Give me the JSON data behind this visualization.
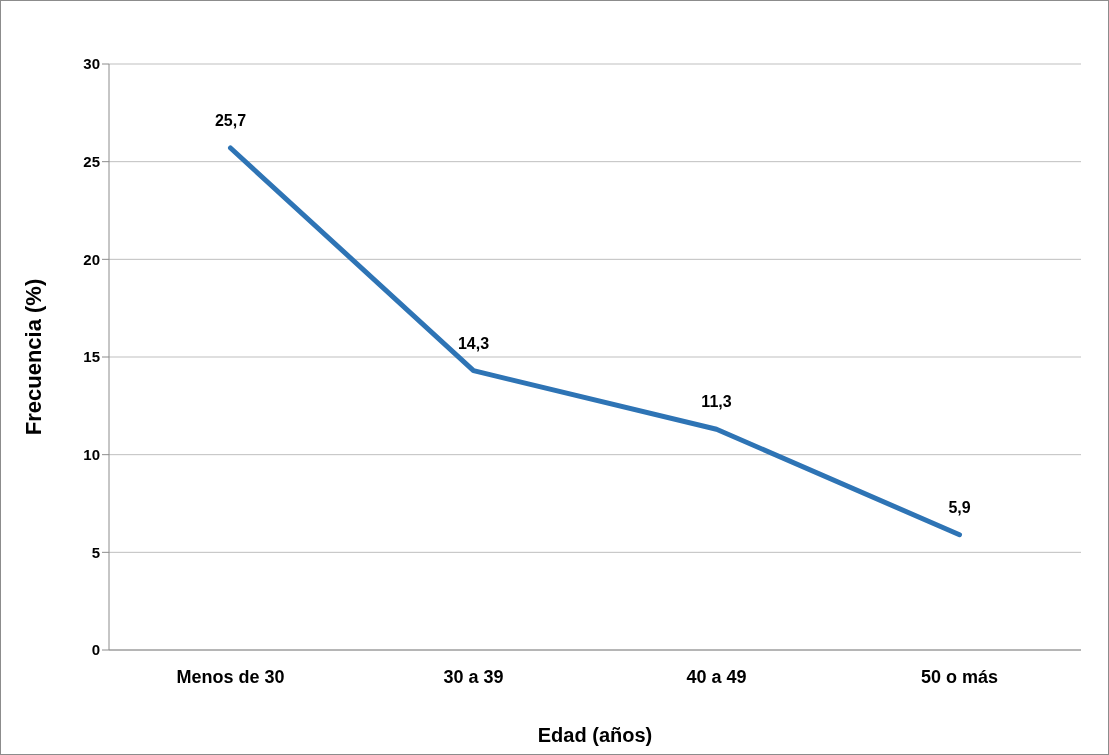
{
  "chart_data": {
    "type": "line",
    "xlabel": "Edad (años)",
    "ylabel": "Frecuencia (%)",
    "categories": [
      "Menos de 30",
      "30 a 39",
      "40 a 49",
      "50 o más"
    ],
    "series": [
      {
        "color": "#2e74b5",
        "values": [
          25.7,
          14.3,
          11.3,
          5.9
        ],
        "value_labels": [
          "25,7",
          "14,3",
          "11,3",
          "5,9"
        ]
      }
    ],
    "ylim": [
      0,
      30
    ],
    "yticks": [
      0,
      5,
      10,
      15,
      20,
      25,
      30
    ],
    "grid": "y",
    "legend": false,
    "marker": "none",
    "line_style": "solid"
  }
}
